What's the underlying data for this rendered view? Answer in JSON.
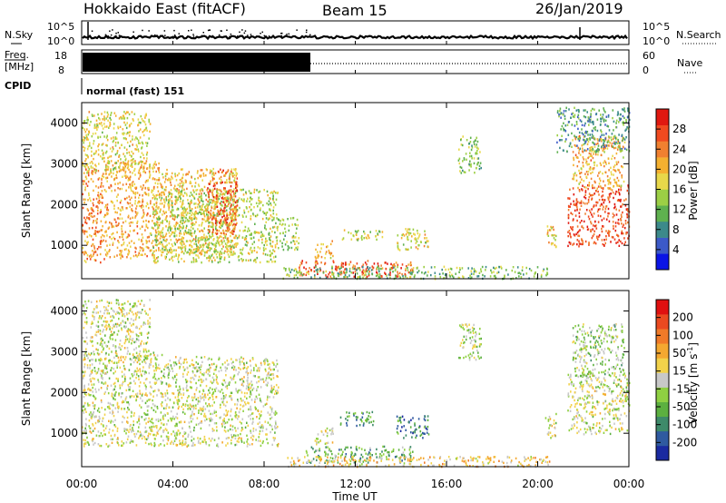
{
  "header": {
    "radar": "Hokkaido East (fitACF)",
    "beam": "Beam 15",
    "date": "26/Jan/2019"
  },
  "noise_panel": {
    "left_label": "N.Sky",
    "right_label": "N.Search",
    "left_ticks": [
      "10^5",
      "10^0"
    ],
    "right_ticks": [
      "10^5",
      "10^0"
    ]
  },
  "freq_panel": {
    "left_label_1": "Freq.",
    "left_label_2": "[MHz]",
    "left_ticks": [
      "18",
      "8"
    ],
    "right_label": "Nave",
    "right_ticks": [
      "60",
      "0"
    ]
  },
  "cpid": {
    "label": "CPID",
    "value": "normal (fast) 151"
  },
  "chart_data": [
    {
      "type": "heatmap",
      "quantity": "Power",
      "xlabel": "Time UT",
      "ylabel": "Slant Range [km]",
      "x_ticks": [
        "00:00",
        "04:00",
        "08:00",
        "12:00",
        "16:00",
        "20:00",
        "00:00"
      ],
      "xlim_hours": [
        0,
        24
      ],
      "y_ticks": [
        "1000",
        "2000",
        "3000",
        "4000"
      ],
      "ylim": [
        180,
        4500
      ],
      "colorbar_label": "Power [dB]",
      "colorbar_ticks": [
        "28",
        "24",
        "20",
        "16",
        "12",
        "8",
        "4"
      ],
      "colorbar_range": [
        0,
        30
      ],
      "colors": [
        "#0a14e6",
        "#3c5ac8",
        "#3c8a8a",
        "#5fb14f",
        "#9ccf45",
        "#e8d84a",
        "#f4b030",
        "#f08030",
        "#f04a20",
        "#e01810"
      ],
      "regions": [
        {
          "t0": 0.0,
          "t1": 1.0,
          "r0": 600,
          "r1": 2900,
          "lvl": 0.72
        },
        {
          "t0": 1.0,
          "t1": 3.5,
          "r0": 700,
          "r1": 3100,
          "lvl": 0.66
        },
        {
          "t0": 3.5,
          "t1": 6.8,
          "r0": 800,
          "r1": 2900,
          "lvl": 0.6
        },
        {
          "t0": 0.0,
          "t1": 3.0,
          "r0": 2800,
          "r1": 4300,
          "lvl": 0.55
        },
        {
          "t0": 3.0,
          "t1": 8.6,
          "r0": 600,
          "r1": 2400,
          "lvl": 0.5
        },
        {
          "t0": 5.5,
          "t1": 6.8,
          "r0": 1300,
          "r1": 2900,
          "lvl": 0.82
        },
        {
          "t0": 8.5,
          "t1": 9.5,
          "r0": 900,
          "r1": 1700,
          "lvl": 0.45
        },
        {
          "t0": 9.5,
          "t1": 14.5,
          "r0": 250,
          "r1": 650,
          "lvl": 0.82
        },
        {
          "t0": 8.8,
          "t1": 20.5,
          "r0": 200,
          "r1": 500,
          "lvl": 0.4
        },
        {
          "t0": 10.2,
          "t1": 11.0,
          "r0": 700,
          "r1": 1150,
          "lvl": 0.62
        },
        {
          "t0": 11.3,
          "t1": 13.2,
          "r0": 1150,
          "r1": 1400,
          "lvl": 0.52
        },
        {
          "t0": 13.8,
          "t1": 15.2,
          "r0": 900,
          "r1": 1450,
          "lvl": 0.55
        },
        {
          "t0": 16.5,
          "t1": 17.5,
          "r0": 2800,
          "r1": 3700,
          "lvl": 0.42
        },
        {
          "t0": 20.3,
          "t1": 20.8,
          "r0": 900,
          "r1": 1500,
          "lvl": 0.58
        },
        {
          "t0": 21.3,
          "t1": 24.0,
          "r0": 1000,
          "r1": 2500,
          "lvl": 0.86
        },
        {
          "t0": 21.5,
          "t1": 23.8,
          "r0": 2400,
          "r1": 3700,
          "lvl": 0.65
        },
        {
          "t0": 20.8,
          "t1": 24.0,
          "r0": 3300,
          "r1": 4400,
          "lvl": 0.3
        }
      ]
    },
    {
      "type": "heatmap",
      "quantity": "Velocity",
      "xlabel": "Time UT",
      "ylabel": "Slant Range [km]",
      "x_ticks": [
        "00:00",
        "04:00",
        "08:00",
        "12:00",
        "16:00",
        "20:00",
        "00:00"
      ],
      "xlim_hours": [
        0,
        24
      ],
      "y_ticks": [
        "1000",
        "2000",
        "3000",
        "4000"
      ],
      "ylim": [
        180,
        4500
      ],
      "colorbar_label": "Velocity [m s-1]",
      "colorbar_label_main": "Velocity [m s",
      "colorbar_label_sup": "-1",
      "colorbar_label_end": "]",
      "colorbar_ticks": [
        "200",
        "100",
        "50",
        "15",
        "-15",
        "-50",
        "-100",
        "-200"
      ],
      "colors": [
        "#1a2aa0",
        "#2f5aa0",
        "#3e8a6a",
        "#5cb040",
        "#8fd042",
        "#c8c8c8",
        "#f2d24a",
        "#f4a830",
        "#f07a28",
        "#ea4a20",
        "#e01010"
      ],
      "regions": [
        {
          "t0": 0.0,
          "t1": 3.5,
          "r0": 700,
          "r1": 3000,
          "lvl": 0.5
        },
        {
          "t0": 3.5,
          "t1": 8.6,
          "r0": 700,
          "r1": 2900,
          "lvl": 0.5
        },
        {
          "t0": 0.0,
          "t1": 3.0,
          "r0": 2800,
          "r1": 4300,
          "lvl": 0.5
        },
        {
          "t0": 9.8,
          "t1": 14.5,
          "r0": 300,
          "r1": 700,
          "lvl": 0.32
        },
        {
          "t0": 9.0,
          "t1": 20.5,
          "r0": 200,
          "r1": 450,
          "lvl": 0.6
        },
        {
          "t0": 10.2,
          "t1": 11.0,
          "r0": 700,
          "r1": 1150,
          "lvl": 0.5
        },
        {
          "t0": 11.3,
          "t1": 12.8,
          "r0": 1200,
          "r1": 1550,
          "lvl": 0.28
        },
        {
          "t0": 13.8,
          "t1": 15.2,
          "r0": 900,
          "r1": 1450,
          "lvl": 0.22
        },
        {
          "t0": 16.5,
          "t1": 17.5,
          "r0": 2800,
          "r1": 3700,
          "lvl": 0.45
        },
        {
          "t0": 20.3,
          "t1": 20.8,
          "r0": 900,
          "r1": 1500,
          "lvl": 0.5
        },
        {
          "t0": 21.3,
          "t1": 24.0,
          "r0": 1000,
          "r1": 2500,
          "lvl": 0.5
        },
        {
          "t0": 21.5,
          "t1": 23.8,
          "r0": 2400,
          "r1": 3700,
          "lvl": 0.42
        }
      ]
    }
  ]
}
